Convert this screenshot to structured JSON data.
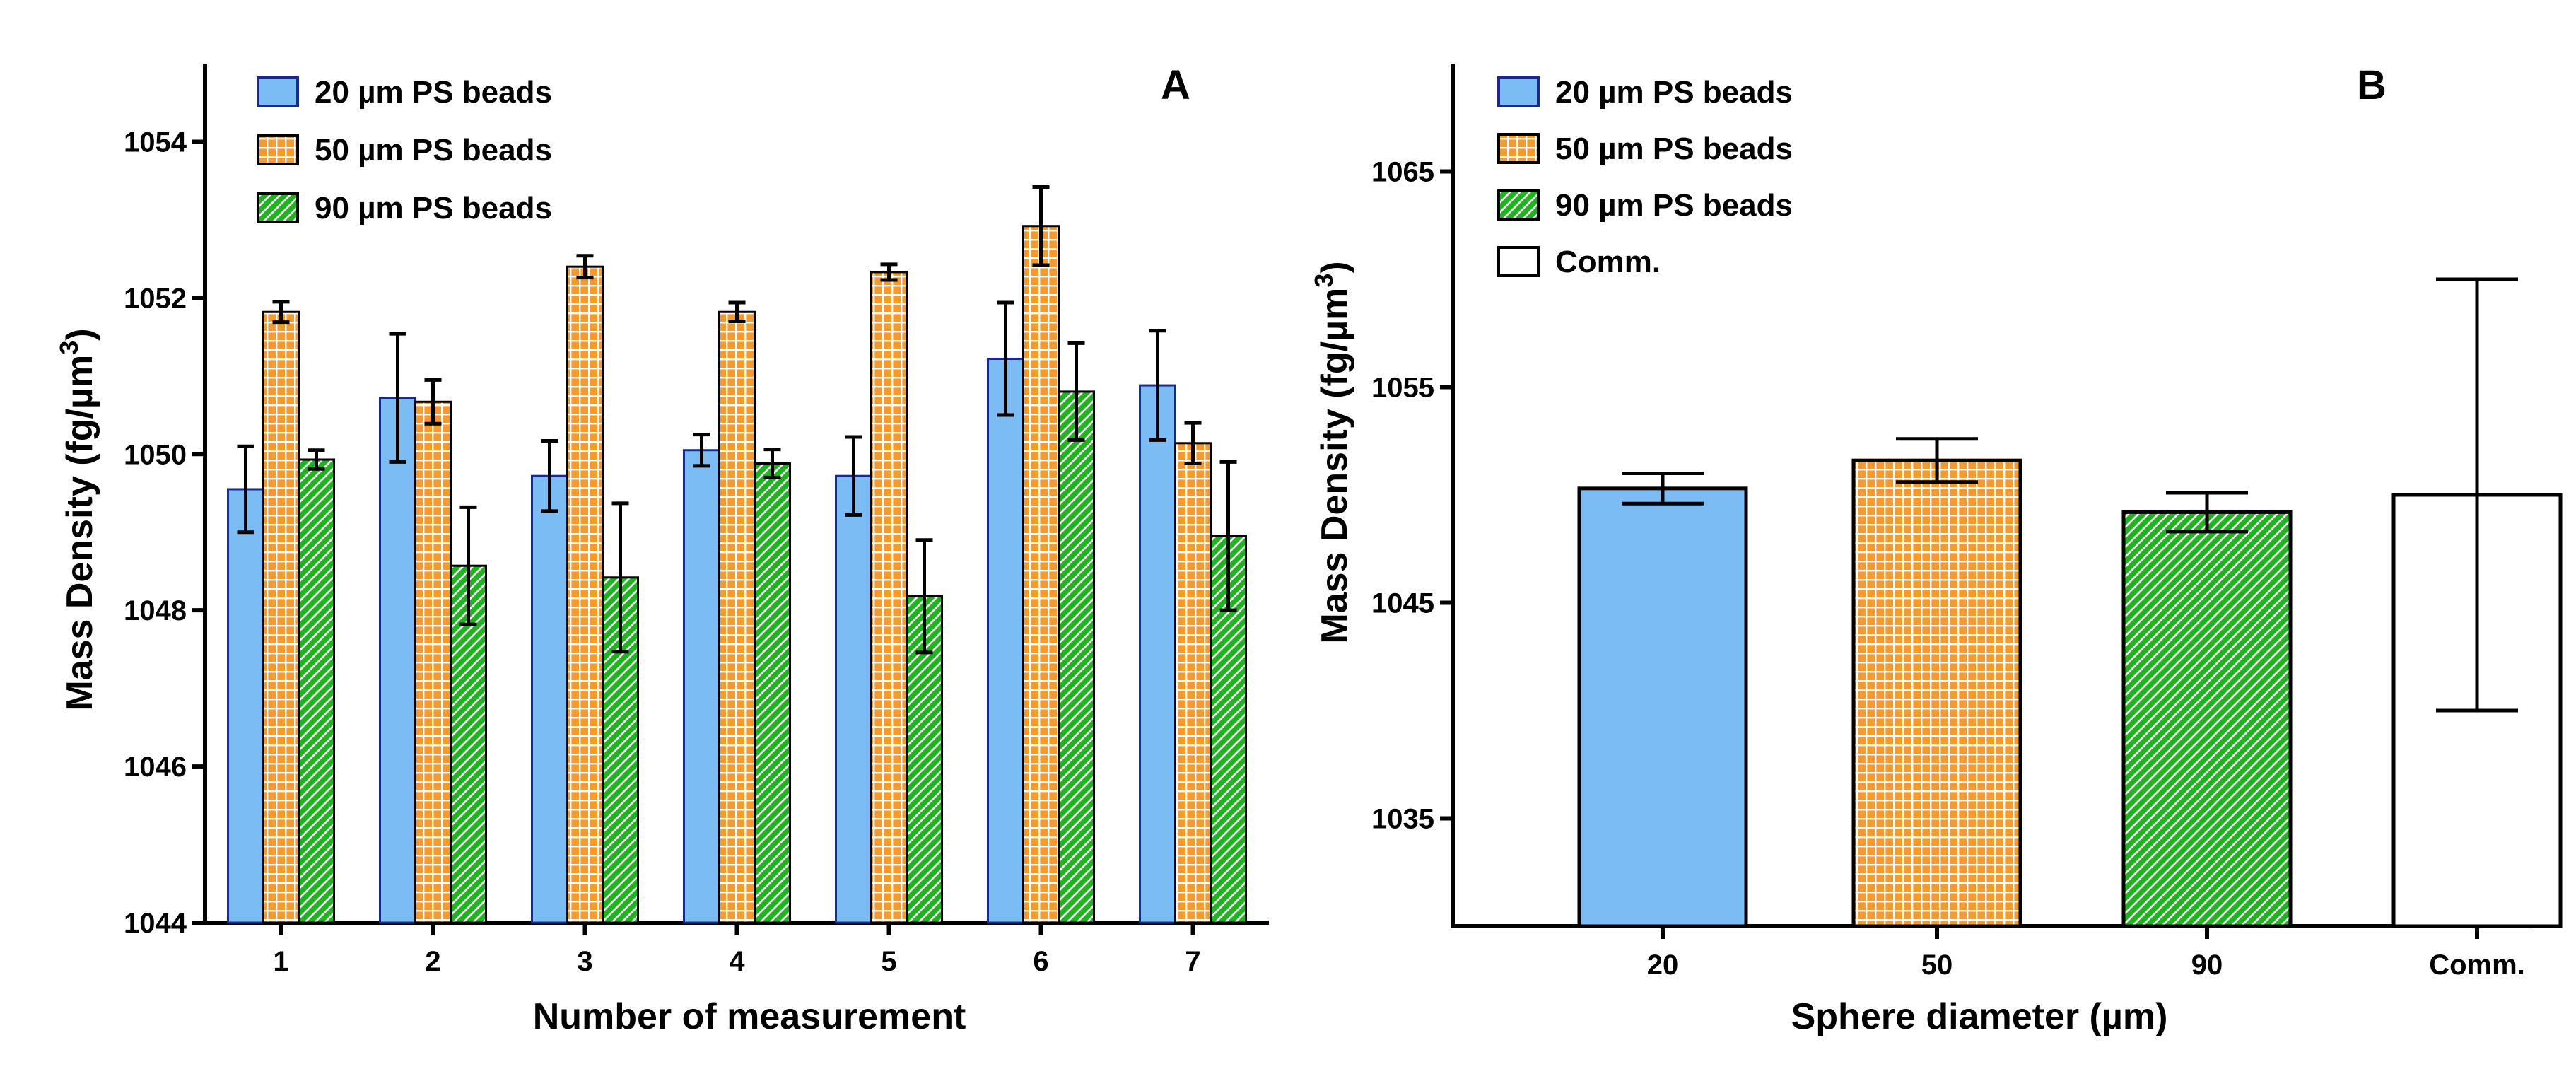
{
  "chart_data": [
    {
      "type": "bar",
      "panel_label": "A",
      "xlabel": "Number of measurement",
      "ylabel": "Mass Density (fg/µm",
      "ylabel_sup": "3",
      "ylabel_end": ")",
      "categories": [
        "1",
        "2",
        "3",
        "4",
        "5",
        "6",
        "7"
      ],
      "ylim": [
        1044,
        1055
      ],
      "yticks": [
        1044,
        1046,
        1048,
        1050,
        1052,
        1054
      ],
      "grid": false,
      "legend_position": "top-left",
      "series": [
        {
          "name": "20 µm PS beads",
          "pattern": "solid-blue",
          "color": "#7cbcf4",
          "values": [
            1049.55,
            1050.72,
            1049.72,
            1050.05,
            1049.72,
            1051.22,
            1050.88
          ],
          "errors": [
            0.55,
            0.82,
            0.45,
            0.2,
            0.5,
            0.72,
            0.7
          ]
        },
        {
          "name": "50 µm PS beads",
          "pattern": "orange-grid",
          "color": "#f79a2e",
          "values": [
            1051.82,
            1050.67,
            1052.4,
            1051.82,
            1052.33,
            1052.92,
            1050.14
          ],
          "errors": [
            0.13,
            0.28,
            0.14,
            0.12,
            0.1,
            0.5,
            0.26
          ]
        },
        {
          "name": "90 µm PS beads",
          "pattern": "green-hatch",
          "color": "#1fb41f",
          "values": [
            1049.93,
            1048.57,
            1048.42,
            1049.88,
            1048.18,
            1050.8,
            1048.95
          ],
          "errors": [
            0.12,
            0.75,
            0.95,
            0.18,
            0.72,
            0.62,
            0.95
          ]
        }
      ]
    },
    {
      "type": "bar",
      "panel_label": "B",
      "xlabel": "Sphere diameter (µm)",
      "ylabel": "Mass Density (fg/µm",
      "ylabel_sup": "3",
      "ylabel_end": ")",
      "categories": [
        "20",
        "50",
        "90",
        "Comm."
      ],
      "ylim": [
        1030,
        1070
      ],
      "yticks": [
        1035,
        1045,
        1055,
        1065
      ],
      "grid": false,
      "legend_position": "top-left",
      "legend": [
        "20 µm PS beads",
        "50 µm PS beads",
        "90 µm PS beads",
        "Comm."
      ],
      "bars": [
        {
          "label": "20",
          "pattern": "solid-blue",
          "value": 1050.3,
          "error": 0.7
        },
        {
          "label": "50",
          "pattern": "orange-grid",
          "value": 1051.6,
          "error": 1.0
        },
        {
          "label": "90",
          "pattern": "green-hatch",
          "value": 1049.2,
          "error": 0.9
        },
        {
          "label": "Comm.",
          "pattern": "white",
          "value": 1050.0,
          "error": 10.0
        }
      ]
    }
  ]
}
